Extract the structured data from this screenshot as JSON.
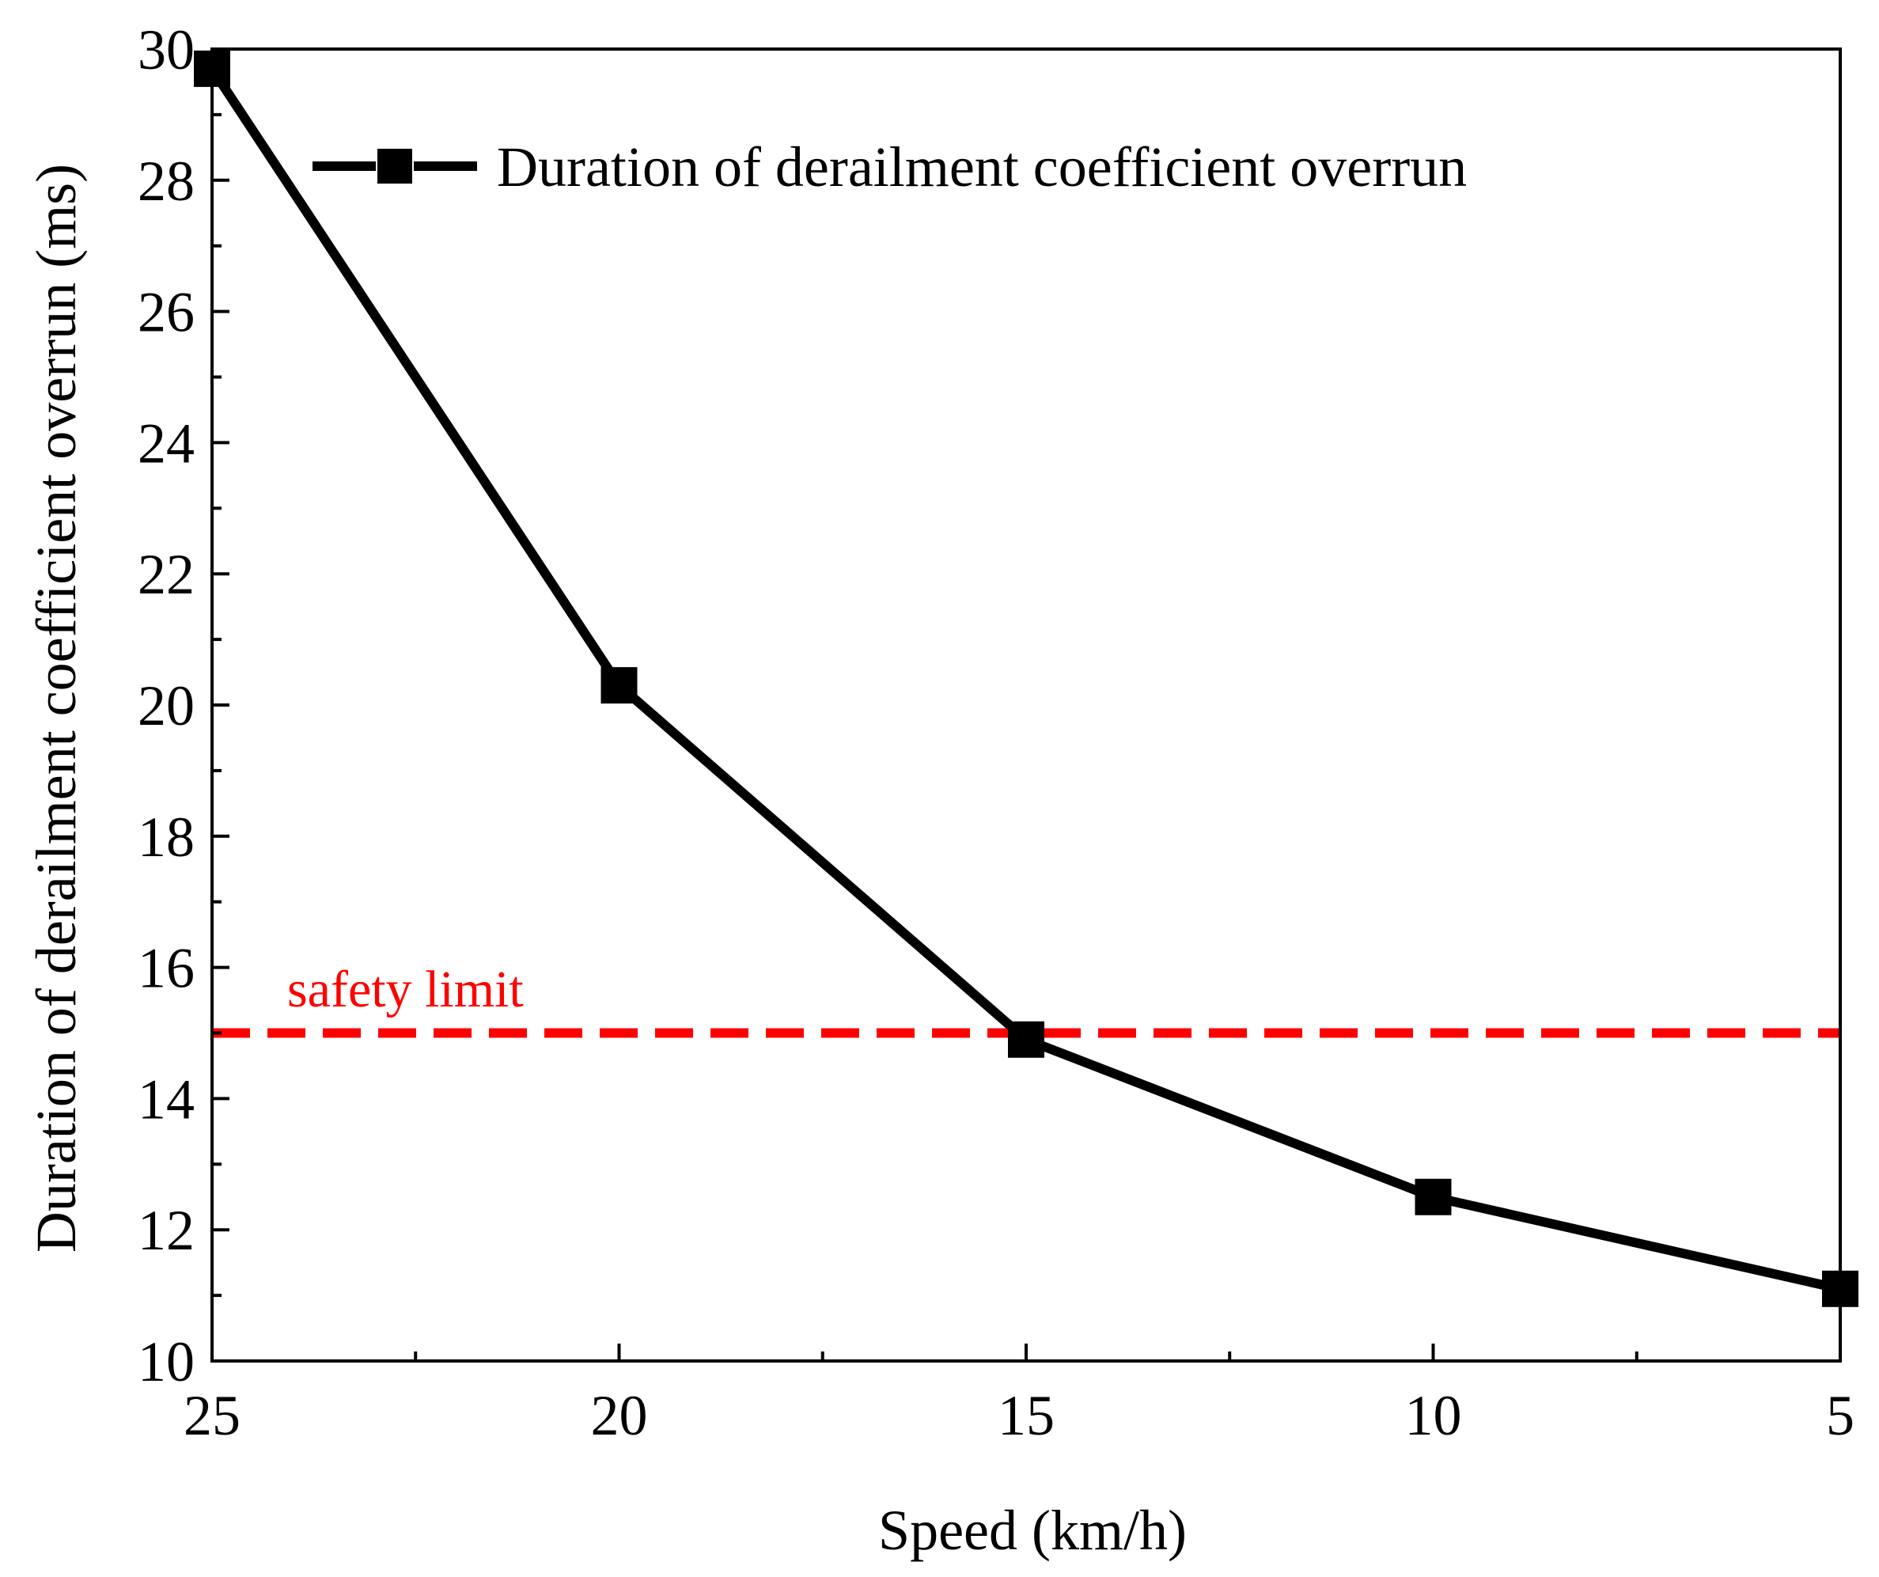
{
  "chart_data": {
    "type": "line",
    "xlabel": "Speed (km/h)",
    "ylabel": "Duration of derailment coefficient overrun (ms)",
    "xlim": [
      25,
      5
    ],
    "ylim": [
      10,
      30
    ],
    "x_ticks": [
      "25",
      "20",
      "15",
      "10",
      "5"
    ],
    "y_ticks": [
      "10",
      "12",
      "14",
      "16",
      "18",
      "20",
      "22",
      "24",
      "26",
      "28",
      "30"
    ],
    "series": [
      {
        "name": "Duration of derailment coefficient overrun",
        "color": "#000000",
        "marker": "square",
        "x": [
          25,
          20,
          15,
          10,
          5
        ],
        "y": [
          29.7,
          20.3,
          14.9,
          12.5,
          11.1
        ]
      }
    ],
    "reference_line": {
      "label": "safety limit",
      "y": 15,
      "color": "#ff0000",
      "style": "dashed"
    },
    "legend": {
      "position": "top-right"
    },
    "grid": false
  }
}
